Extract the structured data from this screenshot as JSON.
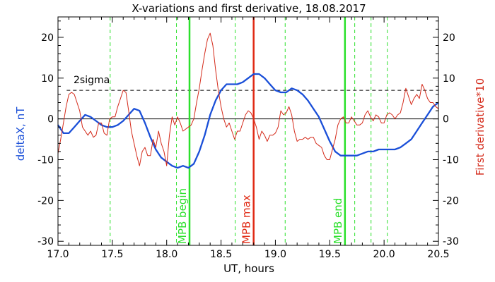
{
  "chart_data": {
    "type": "line",
    "title": "X-variations and first derivative, 18.08.2017",
    "xlabel": "UT, hours",
    "ylabel_left": "deltaX, nT",
    "ylabel_right": "First derivative*10",
    "xlim": [
      17.0,
      20.5
    ],
    "ylim": [
      -31,
      25
    ],
    "x_ticks": [
      17.0,
      17.5,
      18.0,
      18.5,
      19.0,
      19.5,
      20.0,
      20.5
    ],
    "x_tick_labels": [
      "17.0",
      "17.5",
      "18.0",
      "18.5",
      "19.0",
      "19.5",
      "20.0",
      "20.5"
    ],
    "y_ticks": [
      -30,
      -20,
      -10,
      0,
      10,
      20
    ],
    "y_tick_labels": [
      "-30",
      "-20",
      "-10",
      "0",
      "10",
      "20"
    ],
    "sigma_label": "2sigma",
    "sigma_level": 7,
    "zero_level": 0,
    "colors": {
      "deltaX": "#1a4fd8",
      "derivative": "#d42a1a",
      "mpb": "#2ce02c",
      "mpb_max": "#e02a14",
      "axis": "#000000",
      "left_label": "#1a4fd8",
      "right_label": "#d42a1a"
    },
    "dashed_green_x": [
      17.48,
      18.09,
      18.63,
      19.09,
      19.73,
      19.88,
      20.03
    ],
    "markers": [
      {
        "x": 18.21,
        "label": "MPB begin",
        "color": "#2ce02c"
      },
      {
        "x": 18.8,
        "label": "MPB max",
        "color": "#e02a14"
      },
      {
        "x": 19.64,
        "label": "MPB end",
        "color": "#2ce02c"
      }
    ],
    "series": [
      {
        "name": "deltaX",
        "x": [
          17.0,
          17.05,
          17.1,
          17.15,
          17.2,
          17.25,
          17.3,
          17.35,
          17.4,
          17.45,
          17.5,
          17.55,
          17.6,
          17.65,
          17.7,
          17.75,
          17.8,
          17.85,
          17.9,
          17.95,
          18.0,
          18.05,
          18.1,
          18.15,
          18.2,
          18.25,
          18.3,
          18.35,
          18.4,
          18.45,
          18.5,
          18.55,
          18.6,
          18.65,
          18.7,
          18.75,
          18.8,
          18.85,
          18.9,
          18.95,
          19.0,
          19.05,
          19.1,
          19.15,
          19.2,
          19.25,
          19.3,
          19.35,
          19.4,
          19.45,
          19.5,
          19.55,
          19.6,
          19.65,
          19.7,
          19.75,
          19.8,
          19.85,
          19.9,
          19.95,
          20.0,
          20.05,
          20.1,
          20.15,
          20.2,
          20.25,
          20.3,
          20.35,
          20.4,
          20.45,
          20.5
        ],
        "values": [
          -1.5,
          -3.5,
          -3.5,
          -2.0,
          -0.5,
          1.0,
          0.5,
          -0.5,
          -1.5,
          -2.0,
          -2.0,
          -1.5,
          -0.5,
          1.0,
          2.5,
          2.0,
          -1.0,
          -4.5,
          -7.5,
          -9.5,
          -10.5,
          -11.5,
          -12.0,
          -11.5,
          -12.0,
          -11.0,
          -8.0,
          -4.0,
          1.0,
          4.5,
          7.0,
          8.5,
          8.5,
          8.5,
          9.0,
          10.0,
          11.0,
          11.0,
          10.0,
          8.5,
          7.0,
          6.5,
          6.5,
          7.5,
          7.0,
          6.0,
          4.5,
          2.5,
          0.5,
          -2.5,
          -5.5,
          -8.0,
          -9.0,
          -9.0,
          -9.0,
          -9.0,
          -8.5,
          -8.0,
          -8.0,
          -7.5,
          -7.5,
          -7.5,
          -7.5,
          -7.0,
          -6.0,
          -5.0,
          -3.0,
          -1.0,
          1.0,
          3.0,
          4.0
        ]
      },
      {
        "name": "derivative",
        "x": [
          17.0,
          17.025,
          17.05,
          17.075,
          17.1,
          17.125,
          17.15,
          17.175,
          17.2,
          17.225,
          17.25,
          17.275,
          17.3,
          17.325,
          17.35,
          17.375,
          17.4,
          17.425,
          17.45,
          17.475,
          17.5,
          17.525,
          17.55,
          17.575,
          17.6,
          17.625,
          17.65,
          17.675,
          17.7,
          17.725,
          17.75,
          17.775,
          17.8,
          17.825,
          17.85,
          17.875,
          17.9,
          17.925,
          17.95,
          17.975,
          18.0,
          18.025,
          18.05,
          18.075,
          18.1,
          18.125,
          18.15,
          18.175,
          18.2,
          18.225,
          18.25,
          18.275,
          18.3,
          18.325,
          18.35,
          18.375,
          18.4,
          18.425,
          18.45,
          18.475,
          18.5,
          18.525,
          18.55,
          18.575,
          18.6,
          18.625,
          18.65,
          18.675,
          18.7,
          18.725,
          18.75,
          18.775,
          18.8,
          18.825,
          18.85,
          18.875,
          18.9,
          18.925,
          18.95,
          18.975,
          19.0,
          19.025,
          19.05,
          19.075,
          19.1,
          19.125,
          19.15,
          19.175,
          19.2,
          19.225,
          19.25,
          19.275,
          19.3,
          19.325,
          19.35,
          19.375,
          19.4,
          19.425,
          19.45,
          19.475,
          19.5,
          19.525,
          19.55,
          19.575,
          19.6,
          19.625,
          19.65,
          19.675,
          19.7,
          19.725,
          19.75,
          19.775,
          19.8,
          19.825,
          19.85,
          19.875,
          19.9,
          19.925,
          19.95,
          19.975,
          20.0,
          20.025,
          20.05,
          20.075,
          20.1,
          20.125,
          20.15,
          20.175,
          20.2,
          20.225,
          20.25,
          20.275,
          20.3,
          20.325,
          20.35,
          20.375,
          20.4,
          20.425,
          20.45,
          20.475,
          20.5
        ],
        "values": [
          -8.5,
          -5.0,
          -1.0,
          3.0,
          6.0,
          6.5,
          6.0,
          4.0,
          2.0,
          -2.0,
          -3.0,
          -4.0,
          -3.0,
          -4.5,
          -4.0,
          -1.0,
          -1.0,
          -3.5,
          -4.0,
          0.0,
          0.5,
          0.5,
          3.0,
          5.0,
          7.0,
          6.5,
          2.0,
          -3.0,
          -6.0,
          -9.0,
          -11.5,
          -8.0,
          -7.0,
          -9.0,
          -9.0,
          -5.0,
          -7.0,
          -3.0,
          -6.0,
          -8.0,
          -11.5,
          -4.0,
          0.5,
          -1.5,
          0.5,
          -1.0,
          -3.0,
          -2.5,
          -2.0,
          -1.5,
          0.0,
          4.0,
          7.5,
          12.0,
          16.0,
          19.5,
          21.0,
          18.0,
          12.0,
          7.0,
          3.0,
          0.0,
          -2.0,
          -1.0,
          -3.0,
          -5.0,
          -3.0,
          -3.0,
          -1.0,
          1.0,
          2.0,
          1.5,
          0.0,
          -2.0,
          -5.0,
          -3.0,
          -4.0,
          -5.5,
          -4.0,
          -4.0,
          -3.5,
          -2.0,
          2.0,
          1.0,
          1.5,
          3.0,
          1.0,
          -3.0,
          -5.5,
          -5.0,
          -5.0,
          -4.5,
          -5.0,
          -4.5,
          -4.5,
          -6.0,
          -6.5,
          -7.0,
          -9.0,
          -10.0,
          -10.0,
          -7.5,
          -5.0,
          -1.5,
          0.0,
          0.5,
          -1.0,
          -1.0,
          0.5,
          -0.5,
          -1.5,
          -1.5,
          -1.0,
          1.0,
          2.0,
          0.5,
          -0.5,
          1.0,
          0.5,
          -1.0,
          -1.0,
          1.0,
          1.5,
          1.0,
          0.0,
          1.0,
          1.5,
          4.0,
          7.5,
          5.5,
          3.5,
          5.0,
          6.0,
          5.0,
          8.5,
          7.0,
          5.0,
          4.0,
          4.0,
          3.0,
          2.5
        ]
      }
    ]
  }
}
